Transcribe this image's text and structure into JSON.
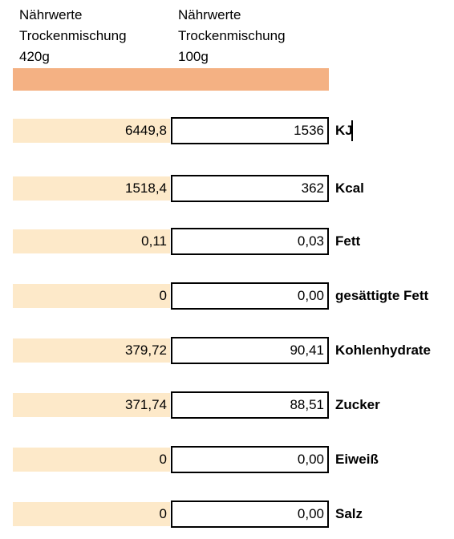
{
  "colors": {
    "header_band": "#f4b183",
    "value_cell_fill": "#fde9c9",
    "box_border": "#000000"
  },
  "headers": {
    "col_420": {
      "line1": "Nährwerte",
      "line2": "Trockenmischung",
      "line3": "420g"
    },
    "col_100": {
      "line1": "Nährwerte",
      "line2": "Trockenmischung",
      "line3": "100g"
    }
  },
  "rows": [
    {
      "value_420": "6449,8",
      "value_100": "1536",
      "label": "KJ"
    },
    {
      "value_420": "1518,4",
      "value_100": "362",
      "label": "Kcal"
    },
    {
      "value_420": "0,11",
      "value_100": "0,03",
      "label": "Fett"
    },
    {
      "value_420": "0",
      "value_100": "0,00",
      "label": "gesättigte Fett"
    },
    {
      "value_420": "379,72",
      "value_100": "90,41",
      "label": "Kohlenhydrate"
    },
    {
      "value_420": "371,74",
      "value_100": "88,51",
      "label": "Zucker"
    },
    {
      "value_420": "0",
      "value_100": "0,00",
      "label": "Eiweiß"
    },
    {
      "value_420": "0",
      "value_100": "0,00",
      "label": "Salz"
    }
  ]
}
